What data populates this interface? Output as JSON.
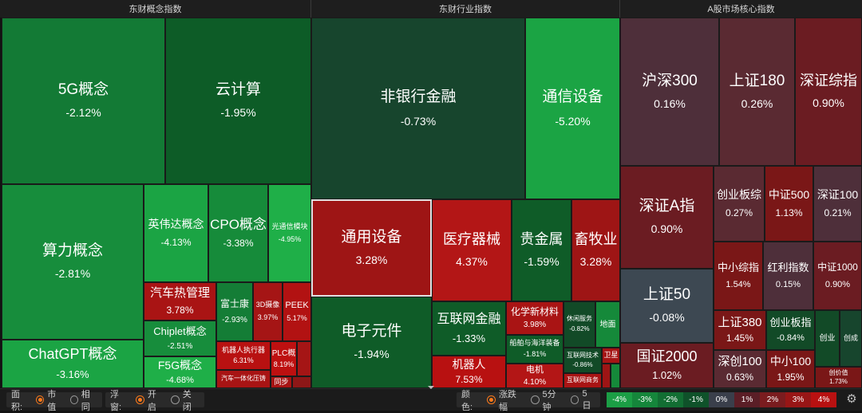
{
  "headers": {
    "concept": "东财概念指数",
    "industry": "东财行业指数",
    "core": "A股市场核心指数"
  },
  "colors": {
    "red_strong": "#aa1313",
    "red_mid": "#7a1717",
    "red_dark": "#5a1b22",
    "maroon_soft": "#4e2f3a",
    "green_bright": "#1fa245",
    "green_mid": "#15893a",
    "green_dark": "#0f5f2a",
    "gray_flat": "#3d4852"
  },
  "concept_tiles": [
    {
      "name": "5G概念",
      "pct": "-2.12%"
    },
    {
      "name": "云计算",
      "pct": "-1.95%"
    },
    {
      "name": "算力概念",
      "pct": "-2.81%"
    },
    {
      "name": "英伟达概念",
      "pct": "-4.13%"
    },
    {
      "name": "CPO概念",
      "pct": "-3.38%"
    },
    {
      "name": "光通信模块",
      "pct": "-4.95%"
    },
    {
      "name": "汽车热管理",
      "pct": "3.78%"
    },
    {
      "name": "Chiplet概念",
      "pct": "-2.51%"
    },
    {
      "name": "F5G概念",
      "pct": "-4.68%"
    },
    {
      "name": "富士康",
      "pct": "-2.93%"
    },
    {
      "name": "3D摄像",
      "pct": "3.97%"
    },
    {
      "name": "PEEK",
      "pct": "5.17%"
    },
    {
      "name": "机器人执行器",
      "pct": "6.31%"
    },
    {
      "name": "PLC概",
      "pct": "8.19%"
    },
    {
      "name": "汽车一体化压铸",
      "pct": ""
    },
    {
      "name": "同步",
      "pct": ""
    },
    {
      "name": "ChatGPT概念",
      "pct": "-3.16%"
    }
  ],
  "industry_tiles": [
    {
      "name": "非银行金融",
      "pct": "-0.73%"
    },
    {
      "name": "通信设备",
      "pct": "-5.20%"
    },
    {
      "name": "通用设备",
      "pct": "3.28%"
    },
    {
      "name": "医疗器械",
      "pct": "4.37%"
    },
    {
      "name": "贵金属",
      "pct": "-1.59%"
    },
    {
      "name": "畜牧业",
      "pct": "3.28%"
    },
    {
      "name": "电子元件",
      "pct": "-1.94%"
    },
    {
      "name": "互联网金融",
      "pct": "-1.33%"
    },
    {
      "name": "化学新材料",
      "pct": "3.98%"
    },
    {
      "name": "休闲服务",
      "pct": "-0.82%"
    },
    {
      "name": "地面",
      "pct": ""
    },
    {
      "name": "船舶与海洋装备",
      "pct": "-1.81%"
    },
    {
      "name": "互联网技术",
      "pct": "-0.86%"
    },
    {
      "name": "卫星",
      "pct": ""
    },
    {
      "name": "机器人",
      "pct": "7.53%"
    },
    {
      "name": "电机",
      "pct": "4.10%"
    },
    {
      "name": "互联网商务",
      "pct": ""
    }
  ],
  "core_tiles": [
    {
      "name": "沪深300",
      "pct": "0.16%"
    },
    {
      "name": "上证180",
      "pct": "0.26%"
    },
    {
      "name": "深证综指",
      "pct": "0.90%"
    },
    {
      "name": "深证A指",
      "pct": "0.90%"
    },
    {
      "name": "创业板综",
      "pct": "0.27%"
    },
    {
      "name": "中证500",
      "pct": "1.13%"
    },
    {
      "name": "深证100",
      "pct": "0.21%"
    },
    {
      "name": "中小综指",
      "pct": "1.54%"
    },
    {
      "name": "红利指数",
      "pct": "0.15%"
    },
    {
      "name": "中证1000",
      "pct": "0.90%"
    },
    {
      "name": "上证50",
      "pct": "-0.08%"
    },
    {
      "name": "上证380",
      "pct": "1.45%"
    },
    {
      "name": "创业板指",
      "pct": "-0.84%"
    },
    {
      "name": "创业",
      "pct": ""
    },
    {
      "name": "创成",
      "pct": ""
    },
    {
      "name": "国证2000",
      "pct": "1.02%"
    },
    {
      "name": "深创100",
      "pct": "0.63%"
    },
    {
      "name": "中小100",
      "pct": "1.95%"
    },
    {
      "name": "创价值",
      "pct": "1.73%"
    }
  ],
  "bottom_bar": {
    "area_label": "面积:",
    "area_market": "市值",
    "area_same": "相同",
    "float_label": "浮窗:",
    "float_on": "开启",
    "float_off": "关闭",
    "color_label": "颜色:",
    "color_change": "涨跌幅",
    "color_5min": "5分钟",
    "color_5day": "5日",
    "legend": [
      {
        "label": "-4%",
        "color": "#1b9e45"
      },
      {
        "label": "-3%",
        "color": "#15863b"
      },
      {
        "label": "-2%",
        "color": "#126e33"
      },
      {
        "label": "-1%",
        "color": "#0f522a"
      },
      {
        "label": "0%",
        "color": "#3a3f4b"
      },
      {
        "label": "1%",
        "color": "#5a1e26"
      },
      {
        "label": "2%",
        "color": "#7a1c1f"
      },
      {
        "label": "3%",
        "color": "#981616"
      },
      {
        "label": "4%",
        "color": "#b81111"
      }
    ]
  }
}
